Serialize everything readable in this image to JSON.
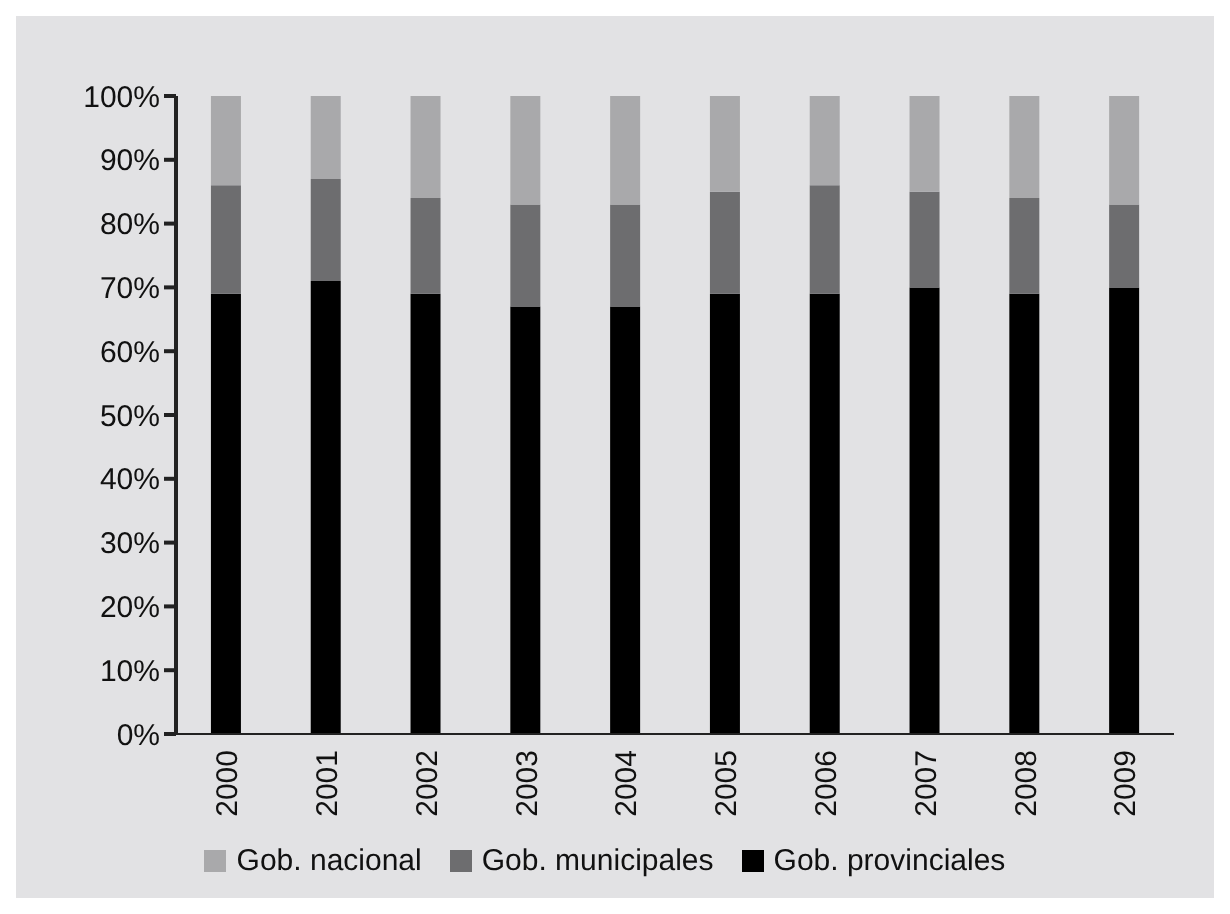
{
  "chart_data": {
    "type": "bar",
    "stacked": true,
    "categories": [
      "2000",
      "2001",
      "2002",
      "2003",
      "2004",
      "2005",
      "2006",
      "2007",
      "2008",
      "2009"
    ],
    "series": [
      {
        "name": "Gob. provinciales",
        "color": "#000000",
        "values": [
          69,
          71,
          69,
          67,
          67,
          69,
          69,
          70,
          69,
          70
        ]
      },
      {
        "name": "Gob. municipales",
        "color": "#6d6d6f",
        "values": [
          17,
          16,
          15,
          16,
          16,
          16,
          17,
          15,
          15,
          13
        ]
      },
      {
        "name": "Gob. nacional",
        "color": "#a9a9ab",
        "values": [
          14,
          13,
          16,
          17,
          17,
          15,
          14,
          15,
          16,
          17
        ]
      }
    ],
    "ylim": [
      0,
      100
    ],
    "yticks": [
      {
        "value": 0,
        "label": "0%"
      },
      {
        "value": 10,
        "label": "10%"
      },
      {
        "value": 20,
        "label": "20%"
      },
      {
        "value": 30,
        "label": "30%"
      },
      {
        "value": 40,
        "label": "40%"
      },
      {
        "value": 50,
        "label": "50%"
      },
      {
        "value": 60,
        "label": "60%"
      },
      {
        "value": 70,
        "label": "70%"
      },
      {
        "value": 80,
        "label": "80%"
      },
      {
        "value": 90,
        "label": "90%"
      },
      {
        "value": 100,
        "label": "100%"
      }
    ],
    "grid": false,
    "legend": "bottom"
  }
}
